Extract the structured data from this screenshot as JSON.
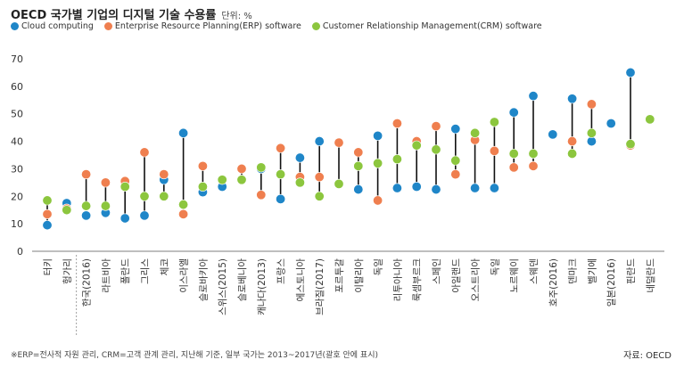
{
  "title": "OECD 국가별 기업의 디지털 기술 수용률",
  "unit": "단위: %",
  "footnote": "※ERP=전사적 자원 관리, CRM=고객 관계 관리, 지난해 기준, 일부 국가는 2013~2017년(괄호 안에 표시)",
  "source": "자료: OECD",
  "colors": {
    "cloud": "#1f86c8",
    "erp": "#ef7f4f",
    "crm": "#8cc63e"
  },
  "chart_data": {
    "type": "scatter",
    "ylim": [
      0,
      70
    ],
    "yticks": [
      0,
      10,
      20,
      30,
      40,
      50,
      60,
      70
    ],
    "grid": false,
    "legend_position": "top-left",
    "categories": [
      "터키",
      "헝가리",
      "한국(2016)",
      "라트비아",
      "폴란드",
      "그리스",
      "체코",
      "이스라엘",
      "슬로바키아",
      "스위스(2015)",
      "슬로베니아",
      "캐나다(2013)",
      "프랑스",
      "에스토니아",
      "브라질(2017)",
      "포르투갈",
      "이탈리아",
      "독일",
      "리투아니아",
      "룩셈부르크",
      "스페인",
      "아일랜드",
      "오스트리아",
      "독일",
      "노르웨이",
      "스웨덴",
      "호주(2016)",
      "덴마크",
      "벨기에",
      "일본(2016)",
      "핀란드",
      "네덜란드"
    ],
    "series": [
      {
        "name": "Cloud computing",
        "key": "cloud",
        "values": [
          9.5,
          17.5,
          13,
          14,
          12,
          13,
          26,
          43,
          21.5,
          23.5,
          26,
          30,
          19,
          34,
          40,
          24.5,
          22.5,
          42,
          23,
          23.5,
          22.5,
          44.5,
          23,
          23,
          50.5,
          56.5,
          42.5,
          55.5,
          40,
          46.5,
          65,
          null
        ]
      },
      {
        "name": "Enterprise Resource Planning(ERP) software",
        "key": "erp",
        "values": [
          13.5,
          15.5,
          28,
          25,
          25.5,
          36,
          28,
          13.5,
          31,
          26,
          30,
          20.5,
          37.5,
          27,
          27,
          39.5,
          36,
          18.5,
          46.5,
          40,
          45.5,
          28,
          40.5,
          36.5,
          30.5,
          31,
          null,
          40,
          53.5,
          null,
          38.5,
          null
        ]
      },
      {
        "name": "Customer Relationship Management(CRM) software",
        "key": "crm",
        "values": [
          18.5,
          15,
          16.5,
          16.5,
          23.5,
          20,
          20,
          17,
          23.5,
          26,
          26,
          30.5,
          28,
          25,
          20,
          24.5,
          31,
          32,
          33.5,
          38.5,
          37,
          33,
          43,
          47,
          35.5,
          35.5,
          null,
          35.5,
          43,
          null,
          39,
          48
        ]
      }
    ]
  }
}
